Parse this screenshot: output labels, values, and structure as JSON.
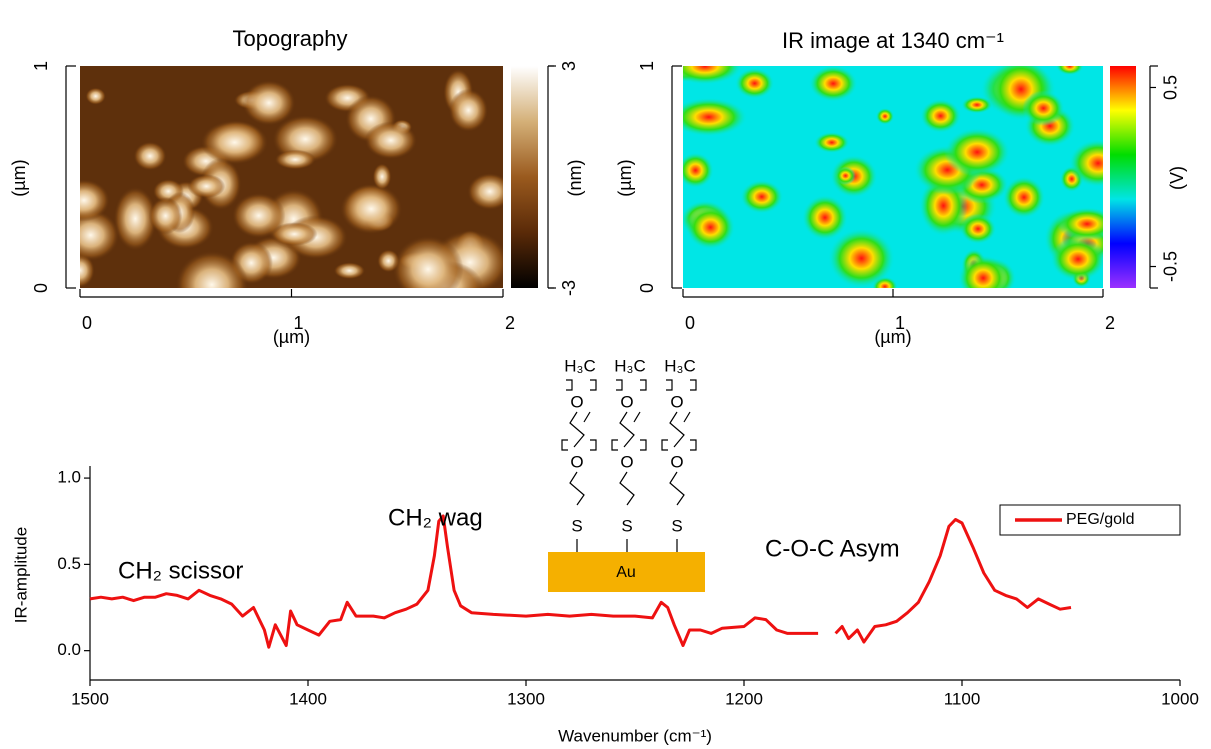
{
  "chart_data": [
    {
      "type": "image",
      "title": "Topography",
      "xlabel": "(µm)",
      "ylabel": "(µm)",
      "xlim": [
        0,
        2
      ],
      "xticks": [
        0,
        1,
        2
      ],
      "ylim": [
        0,
        1
      ],
      "yticks": [
        0,
        1
      ],
      "colorbar": {
        "label": "(nm)",
        "lim": [
          -3,
          3
        ],
        "ticks": [
          -3,
          3
        ],
        "colors": [
          "#000000",
          "#5a2a08",
          "#9a5a1e",
          "#d4b078",
          "#ffffff"
        ]
      }
    },
    {
      "type": "image",
      "title": "IR image at 1340 cm⁻¹",
      "xlabel": "(µm)",
      "ylabel": "(µm)",
      "xlim": [
        0,
        2
      ],
      "xticks": [
        0,
        1,
        2
      ],
      "ylim": [
        0,
        1
      ],
      "yticks": [
        0,
        1
      ],
      "colorbar": {
        "label": "(V)",
        "lim": [
          -0.62,
          0.62
        ],
        "ticks": [
          -0.5,
          0.5
        ],
        "colors": [
          "#9b30ff",
          "#0000ff",
          "#00e5e5",
          "#00dd00",
          "#ffff00",
          "#ff0000"
        ]
      }
    },
    {
      "type": "line",
      "xlabel": "Wavenumber (cm⁻¹)",
      "ylabel": "IR-amplitude",
      "xlim": [
        1500,
        1000
      ],
      "xticks": [
        1500,
        1400,
        1300,
        1200,
        1100,
        1000
      ],
      "ylim": [
        -0.17,
        1.07
      ],
      "yticks": [
        {
          "value": 0,
          "label": "0.0"
        },
        0.5,
        {
          "value": 1,
          "label": "1.0"
        }
      ],
      "legend": "upper right",
      "annotations": [
        "CH₂ scissor",
        "CH₂ wag",
        "C-O-C Asym"
      ],
      "inset": {
        "end_group": "H₃C",
        "oxygen": "O",
        "sulfur": "S",
        "surface": "Au"
      },
      "series": [
        {
          "name": "PEG/gold",
          "color": "#ee1111",
          "x": [
            1500,
            1495,
            1490,
            1485,
            1480,
            1475,
            1470,
            1465,
            1460,
            1455,
            1450,
            1445,
            1440,
            1435,
            1430,
            1425,
            1420,
            1418,
            1415,
            1410,
            1408,
            1405,
            1400,
            1395,
            1390,
            1385,
            1382,
            1378,
            1370,
            1365,
            1360,
            1355,
            1350,
            1345,
            1342,
            1340,
            1338,
            1336,
            1333,
            1330,
            1325,
            1315,
            1300,
            1290,
            1280,
            1270,
            1260,
            1250,
            1242,
            1238,
            1235,
            1232,
            1228,
            1225,
            1220,
            1215,
            1210,
            1200,
            1195,
            1190,
            1185,
            1180,
            1170,
            1166,
            1162,
            1158,
            1155,
            1152,
            1148,
            1145,
            1140,
            1135,
            1130,
            1125,
            1120,
            1115,
            1110,
            1106,
            1103,
            1100,
            1095,
            1090,
            1085,
            1080,
            1075,
            1070,
            1065,
            1060,
            1055,
            1050
          ],
          "values": [
            0.3,
            0.31,
            0.3,
            0.31,
            0.29,
            0.31,
            0.31,
            0.33,
            0.32,
            0.3,
            0.35,
            0.32,
            0.3,
            0.27,
            0.2,
            0.25,
            0.12,
            0.02,
            0.15,
            0.03,
            0.23,
            0.15,
            0.12,
            0.09,
            0.17,
            0.18,
            0.28,
            0.2,
            0.2,
            0.19,
            0.22,
            0.24,
            0.27,
            0.35,
            0.55,
            0.75,
            0.78,
            0.6,
            0.35,
            0.26,
            0.22,
            0.21,
            0.2,
            0.21,
            0.2,
            0.21,
            0.2,
            0.2,
            0.19,
            0.28,
            0.25,
            0.15,
            0.03,
            0.12,
            0.12,
            0.1,
            0.13,
            0.14,
            0.19,
            0.18,
            0.12,
            0.1,
            0.1,
            0.1,
            null,
            0.1,
            0.14,
            0.07,
            0.12,
            0.05,
            0.14,
            0.15,
            0.17,
            0.22,
            0.28,
            0.4,
            0.55,
            0.72,
            0.76,
            0.74,
            0.6,
            0.45,
            0.35,
            0.32,
            0.3,
            0.25,
            0.3,
            0.27,
            0.24,
            0.25
          ]
        }
      ]
    }
  ]
}
